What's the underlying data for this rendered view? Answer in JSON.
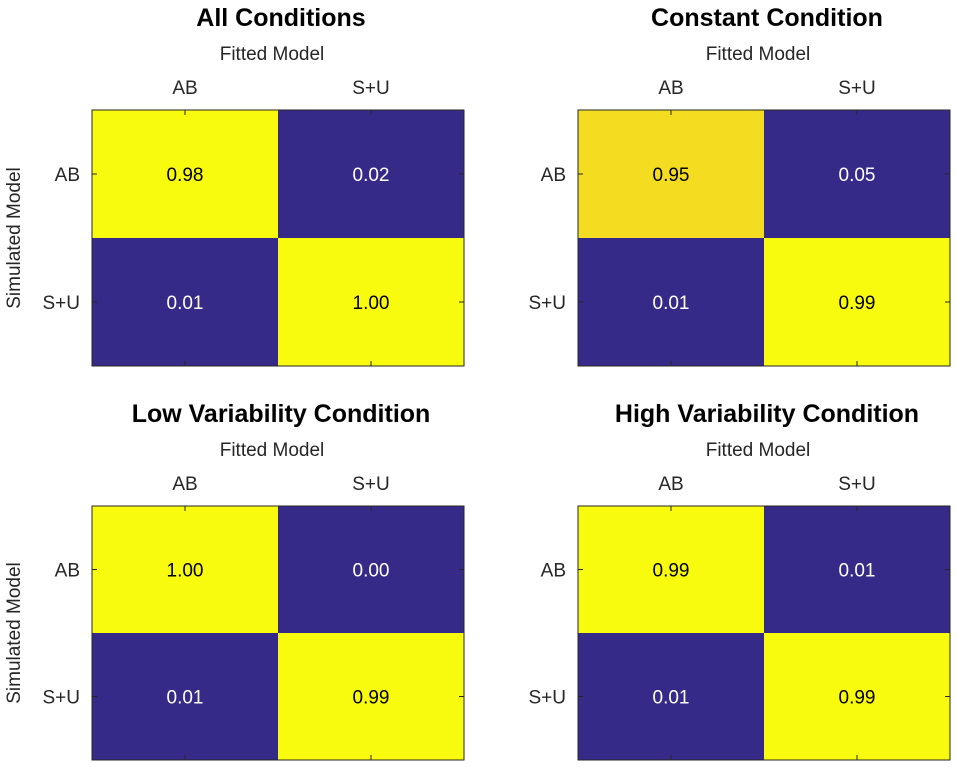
{
  "chart_data": [
    {
      "type": "heatmap",
      "title": "All Conditions",
      "xlabel": "Fitted Model",
      "ylabel": "Simulated Model",
      "x_categories": [
        "AB",
        "S+U"
      ],
      "y_categories": [
        "AB",
        "S+U"
      ],
      "values": [
        [
          0.98,
          0.02
        ],
        [
          0.01,
          1.0
        ]
      ],
      "value_labels": [
        [
          "0.98",
          "0.02"
        ],
        [
          "0.01",
          "1.00"
        ]
      ]
    },
    {
      "type": "heatmap",
      "title": "Constant Condition",
      "xlabel": "Fitted Model",
      "ylabel": "",
      "x_categories": [
        "AB",
        "S+U"
      ],
      "y_categories": [
        "AB",
        "S+U"
      ],
      "values": [
        [
          0.95,
          0.05
        ],
        [
          0.01,
          0.99
        ]
      ],
      "value_labels": [
        [
          "0.95",
          "0.05"
        ],
        [
          "0.01",
          "0.99"
        ]
      ]
    },
    {
      "type": "heatmap",
      "title": "Low Variability Condition",
      "xlabel": "Fitted Model",
      "ylabel": "Simulated Model",
      "x_categories": [
        "AB",
        "S+U"
      ],
      "y_categories": [
        "AB",
        "S+U"
      ],
      "values": [
        [
          1.0,
          0.0
        ],
        [
          0.01,
          0.99
        ]
      ],
      "value_labels": [
        [
          "1.00",
          "0.00"
        ],
        [
          "0.01",
          "0.99"
        ]
      ]
    },
    {
      "type": "heatmap",
      "title": "High Variability Condition",
      "xlabel": "Fitted Model",
      "ylabel": "",
      "x_categories": [
        "AB",
        "S+U"
      ],
      "y_categories": [
        "AB",
        "S+U"
      ],
      "values": [
        [
          0.99,
          0.01
        ],
        [
          0.01,
          0.99
        ]
      ],
      "value_labels": [
        [
          "0.99",
          "0.01"
        ],
        [
          "0.01",
          "0.99"
        ]
      ]
    }
  ],
  "colormap": {
    "low": "#352a87",
    "high": "#f9fb0e",
    "mid_high": "#f4dd21",
    "low_text": "#ffffff",
    "high_text": "#000000"
  }
}
